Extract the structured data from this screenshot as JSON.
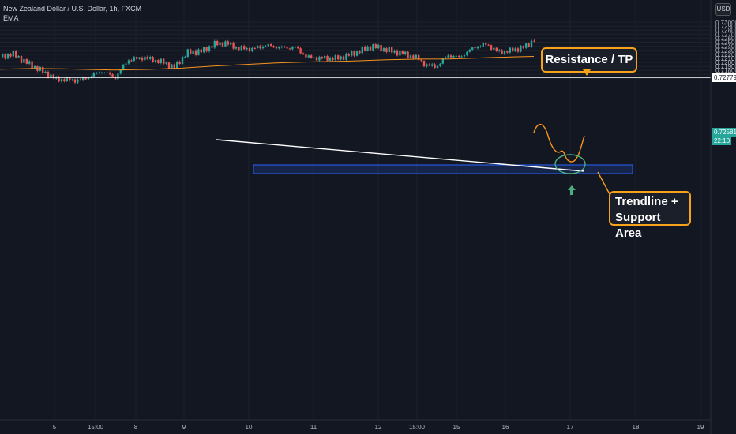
{
  "header": {
    "symbol_title": "New Zealand Dollar / U.S. Dollar, 1h, FXCM",
    "indicator": "EMA",
    "currency": "USD"
  },
  "price_axis": {
    "labels": [
      "0.73000",
      "0.72900",
      "0.72800",
      "0.72700",
      "0.72600",
      "0.72500",
      "0.72400",
      "0.72300",
      "0.72200",
      "0.72100",
      "0.72000",
      "0.71900",
      "0.71800",
      "0.71700",
      "0.71600"
    ],
    "resistance_price": "0.72779",
    "current_price": "0.72581",
    "countdown": "22:10"
  },
  "time_axis": {
    "labels": [
      "5",
      "15:00",
      "8",
      "9",
      "10",
      "11",
      "12",
      "15:00",
      "15",
      "16",
      "17",
      "18",
      "19"
    ]
  },
  "annotations": {
    "resistance_label": "Resistance / TP",
    "trendline_label_line1": "Trendline +",
    "trendline_label_line2": "Support Area"
  },
  "colors": {
    "background": "#131722",
    "up_candle": "#26a69a",
    "down_candle": "#ef5350",
    "ema": "#f7931e",
    "callout_border": "#f7a21b",
    "support_box": "#2962ff",
    "arrow": "#4caf7d"
  }
}
